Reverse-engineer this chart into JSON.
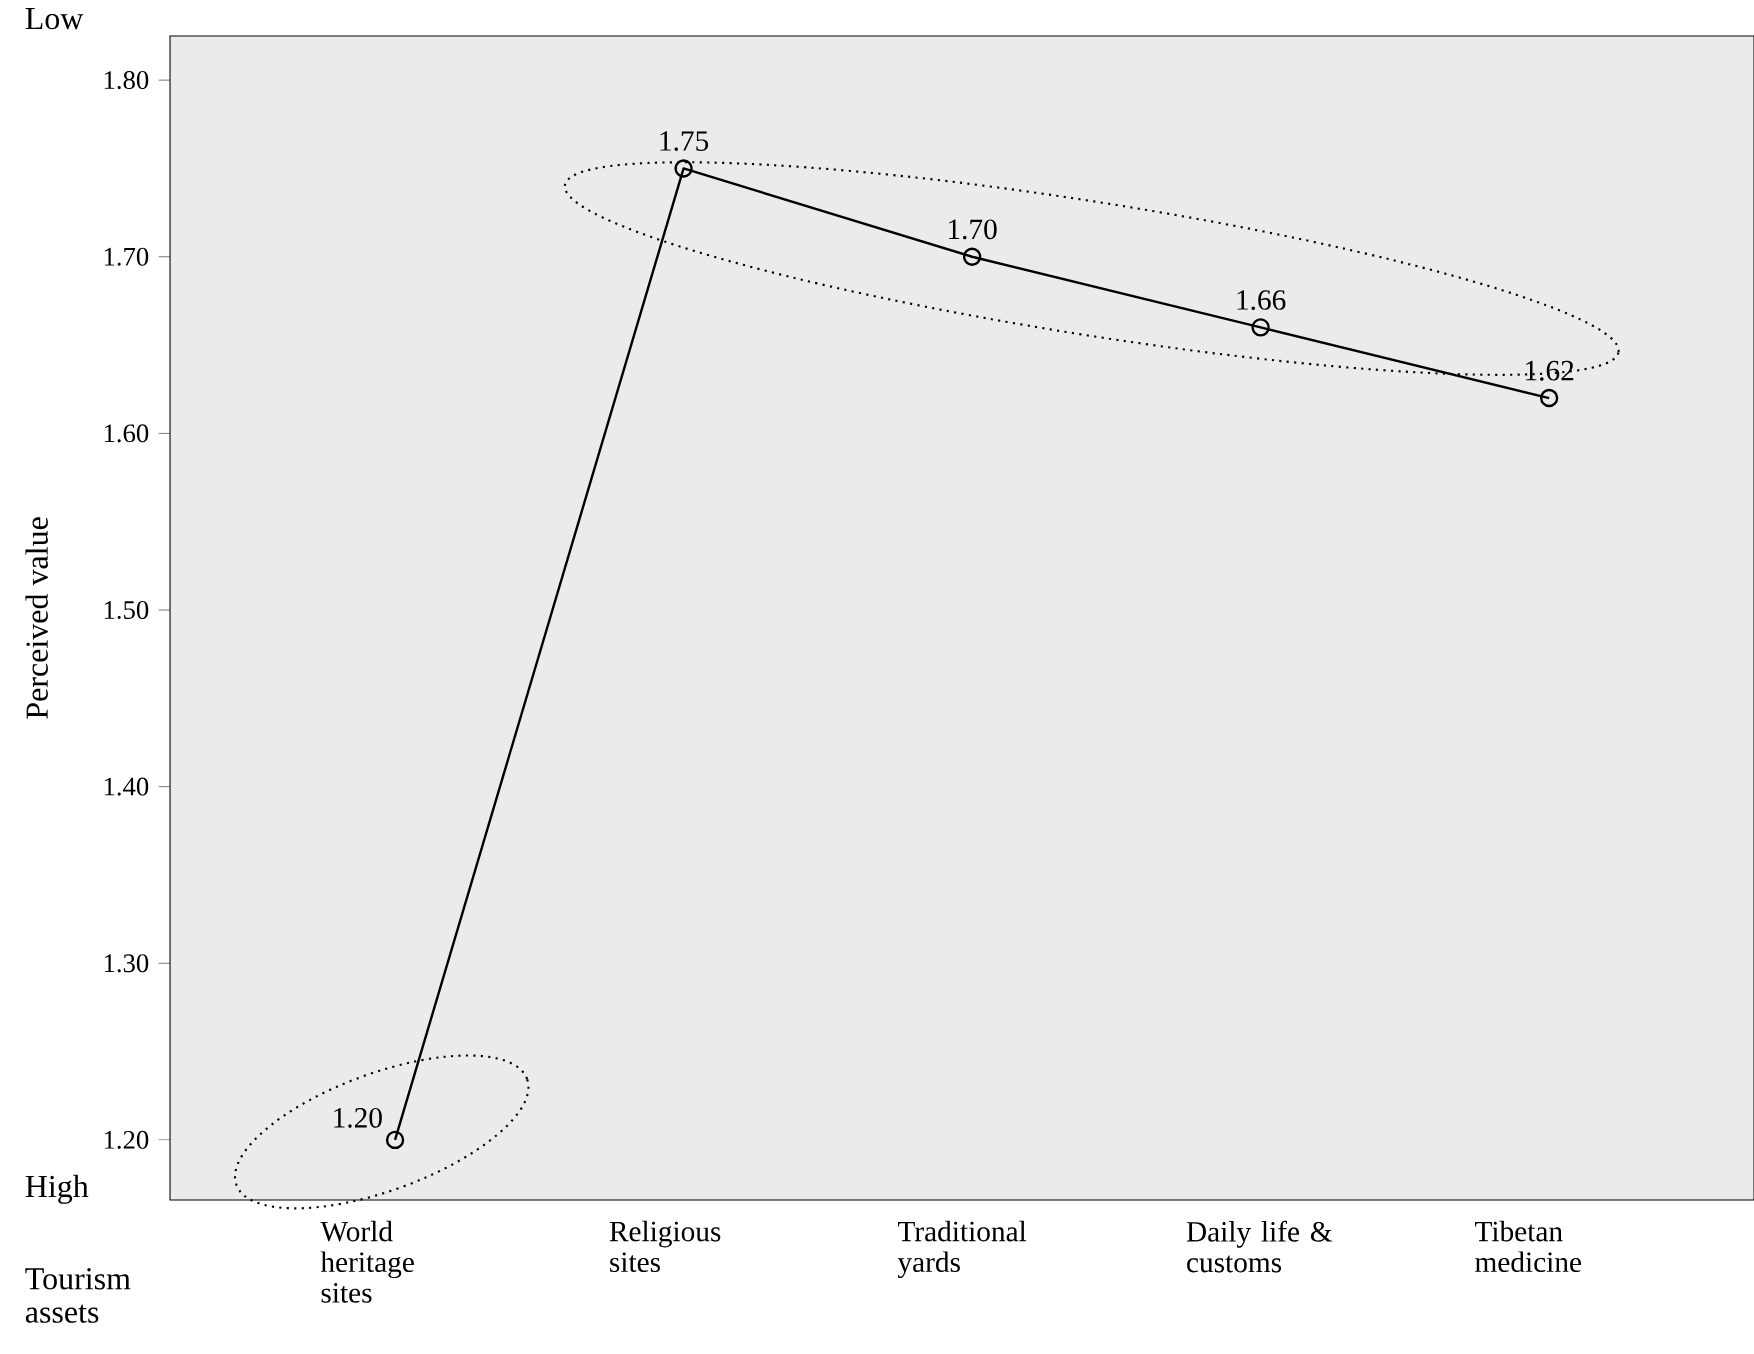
{
  "chart_data": {
    "type": "line",
    "categories": [
      "World heritage sites",
      "Religious sites",
      "Traditional yards",
      "Daily life & customs",
      "Tibetan medicine"
    ],
    "values": [
      1.2,
      1.75,
      1.7,
      1.66,
      1.62
    ],
    "value_labels": [
      "1.20",
      "1.75",
      "1.70",
      "1.66",
      "1.62"
    ],
    "color": "#000000",
    "marker": "circle",
    "line_style": "solid",
    "xlabel": "Tourism assets",
    "ylabel": "Perceived value",
    "annotations": [
      "Low",
      "High"
    ],
    "ylim": [
      1.166,
      1.825
    ],
    "yticks": [
      {
        "value": 1.2,
        "label": "1.20"
      },
      {
        "value": 1.3,
        "label": "1.30"
      },
      {
        "value": 1.4,
        "label": "1.40"
      },
      {
        "value": 1.5,
        "label": "1.50"
      },
      {
        "value": 1.6,
        "label": "1.60"
      },
      {
        "value": 1.7,
        "label": "1.70"
      },
      {
        "value": 1.8,
        "label": "1.80"
      }
    ],
    "grid": false
  }
}
